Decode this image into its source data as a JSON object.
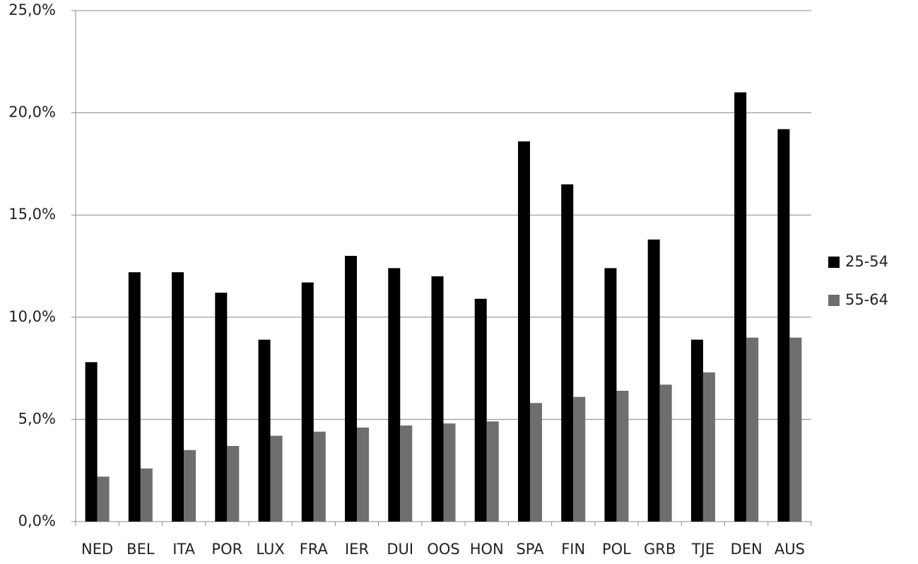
{
  "chart_data": {
    "type": "bar",
    "categories": [
      "NED",
      "BEL",
      "ITA",
      "POR",
      "LUX",
      "FRA",
      "IER",
      "DUI",
      "OOS",
      "HON",
      "SPA",
      "FIN",
      "POL",
      "GRB",
      "TJE",
      "DEN",
      "AUS"
    ],
    "series": [
      {
        "name": "25-54",
        "color": "#000000",
        "values": [
          7.8,
          12.2,
          12.2,
          11.2,
          8.9,
          11.7,
          13.0,
          12.4,
          12.0,
          10.9,
          18.6,
          16.5,
          12.4,
          13.8,
          8.9,
          21.0,
          19.2
        ]
      },
      {
        "name": "55-64",
        "color": "#6e6e6e",
        "values": [
          2.2,
          2.6,
          3.5,
          3.7,
          4.2,
          4.4,
          4.6,
          4.7,
          4.8,
          4.9,
          5.8,
          6.1,
          6.4,
          6.7,
          7.3,
          9.0,
          9.0
        ]
      }
    ],
    "ylim": [
      0,
      25
    ],
    "yticks": [
      {
        "value": 0,
        "label": "0,0%"
      },
      {
        "value": 5,
        "label": "5,0%"
      },
      {
        "value": 10,
        "label": "10,0%"
      },
      {
        "value": 15,
        "label": "15,0%"
      },
      {
        "value": 20,
        "label": "20,0%"
      },
      {
        "value": 25,
        "label": "25,0%"
      }
    ],
    "grid": true,
    "legend": "right"
  }
}
